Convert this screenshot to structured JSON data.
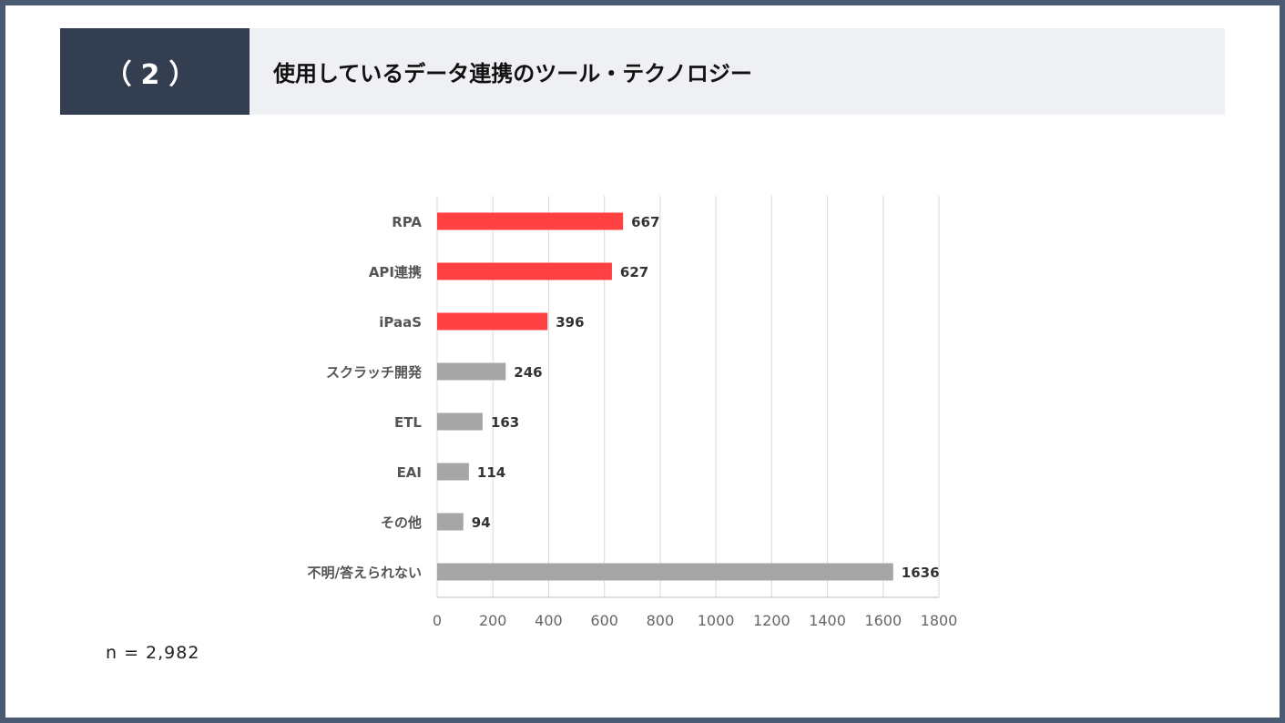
{
  "header": {
    "section_number": "（2）",
    "title": "使用しているデータ連携のツール・テクノロジー"
  },
  "sample_size": "n = 2,982",
  "colors": {
    "highlight": "#ff4143",
    "neutral": "#a6a6a6",
    "grid": "#d9d9d9"
  },
  "chart_data": {
    "type": "bar",
    "orientation": "horizontal",
    "categories": [
      "RPA",
      "API連携",
      "iPaaS",
      "スクラッチ開発",
      "ETL",
      "EAI",
      "その他",
      "不明/答えられない"
    ],
    "values": [
      667,
      627,
      396,
      246,
      163,
      114,
      94,
      1636
    ],
    "highlighted": [
      true,
      true,
      true,
      false,
      false,
      false,
      false,
      false
    ],
    "xlim": [
      0,
      1800
    ],
    "xticks": [
      0,
      200,
      400,
      600,
      800,
      1000,
      1200,
      1400,
      1600,
      1800
    ],
    "grid": true,
    "legend": "none"
  }
}
